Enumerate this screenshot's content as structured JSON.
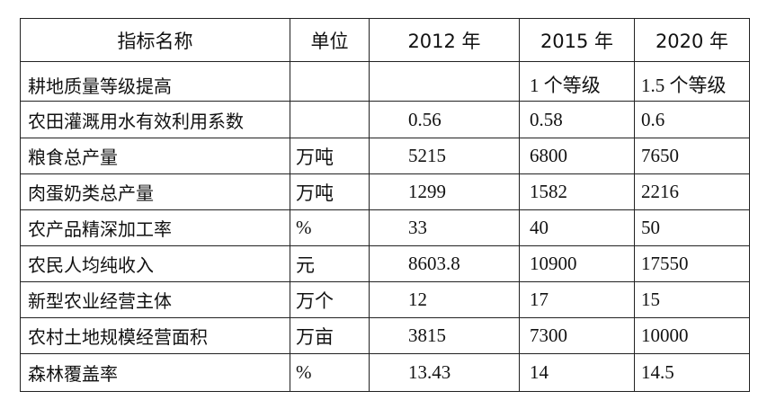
{
  "table": {
    "header": [
      "指标名称",
      "单位",
      "2012 年",
      "2015 年",
      "2020 年"
    ],
    "rows": [
      [
        "耕地质量等级提高",
        null,
        null,
        "1 个等级",
        "1.5 个等级"
      ],
      [
        "农田灌溉用水有效利用系数",
        null,
        "0.56",
        "0.58",
        "0.6"
      ],
      [
        "粮食总产量",
        "万吨",
        "5215",
        "6800",
        "7650"
      ],
      [
        "肉蛋奶类总产量",
        "万吨",
        "1299",
        "1582",
        "2216"
      ],
      [
        "农产品精深加工率",
        "%",
        "33",
        "40",
        "50"
      ],
      [
        "农民人均纯收入",
        "元",
        "8603.8",
        "10900",
        "17550"
      ],
      [
        "新型农业经营主体",
        "万个",
        "12",
        "17",
        "15"
      ],
      [
        "农村土地规模经营面积",
        "万亩",
        "3815",
        "7300",
        "10000"
      ],
      [
        "森林覆盖率",
        "%",
        "13.43",
        "14",
        "14.5"
      ]
    ]
  }
}
